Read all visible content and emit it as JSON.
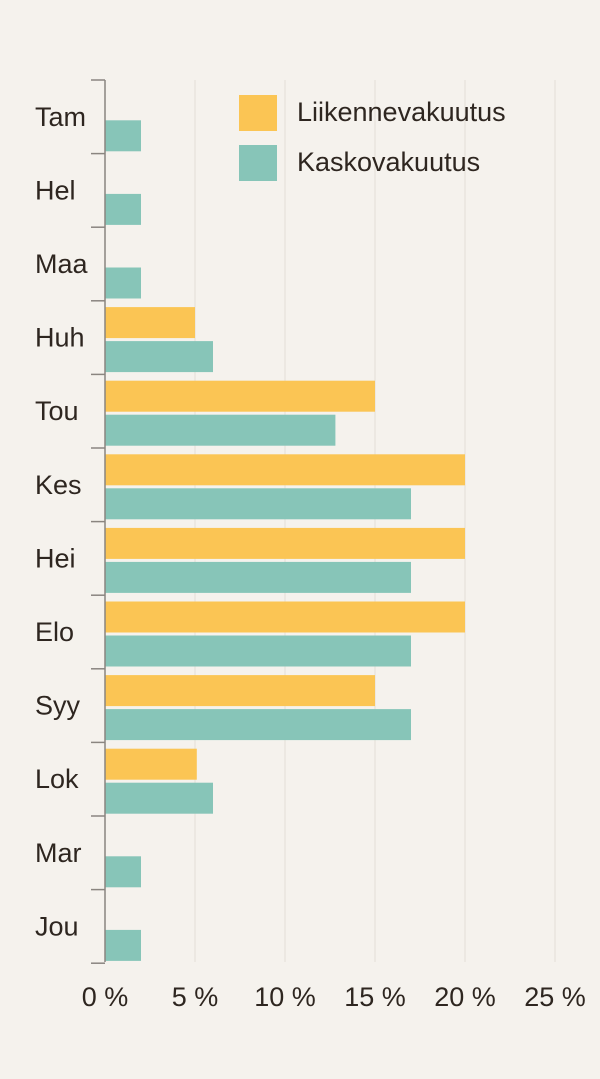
{
  "chart_data": {
    "type": "bar",
    "orientation": "horizontal",
    "categories": [
      "Tam",
      "Hel",
      "Maa",
      "Huh",
      "Tou",
      "Kes",
      "Hei",
      "Elo",
      "Syy",
      "Lok",
      "Mar",
      "Jou"
    ],
    "series": [
      {
        "name": "Liikennevakuutus",
        "color": "#fbc554",
        "values": [
          0,
          0,
          0,
          5,
          15,
          20,
          20,
          20,
          15,
          5.1,
          0,
          0
        ]
      },
      {
        "name": "Kaskovakuutus",
        "color": "#87c5b8",
        "values": [
          2,
          2,
          2,
          6,
          12.8,
          17,
          17,
          17,
          17,
          6,
          2,
          2
        ]
      }
    ],
    "xlim": [
      0,
      25
    ],
    "xticks": [
      0,
      5,
      10,
      15,
      20,
      25
    ],
    "xtick_labels": [
      "0 %",
      "5 %",
      "10 %",
      "15 %",
      "20 %",
      "25 %"
    ],
    "grid": "vertical",
    "legend_position": "top-right"
  }
}
